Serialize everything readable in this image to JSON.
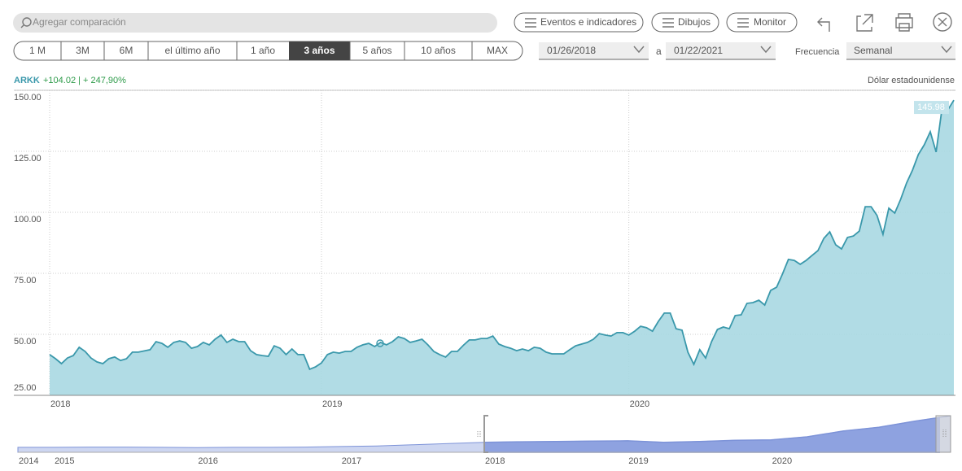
{
  "toolbar": {
    "search_placeholder": "Agregar comparación",
    "buttons": [
      "Eventos e indicadores",
      "Dibujos",
      "Monitor"
    ]
  },
  "ranges": [
    "1 M",
    "3M",
    "6M",
    "el último año",
    "1 año",
    "3 años",
    "5 años",
    "10 años",
    "MAX"
  ],
  "active_range_index": 5,
  "date_from": "01/26/2018",
  "date_sep": "a",
  "date_to": "01/22/2021",
  "frequency_label": "Frecuencia",
  "frequency": "Semanal",
  "ticker": "ARKK",
  "change": "+104.02 | + 247,90%",
  "currency": "Dólar estadounidense",
  "chart_data": [
    {
      "type": "area",
      "color": "#3a98ab",
      "fill": "#a9d8e2",
      "grid": true,
      "categories": [
        "2018",
        null,
        null,
        null,
        null,
        null,
        null,
        null,
        null,
        null,
        null,
        null,
        null,
        null,
        null,
        null,
        null,
        null,
        null,
        null,
        null,
        null,
        null,
        null,
        null,
        null,
        null,
        null,
        null,
        null,
        null,
        null,
        null,
        null,
        null,
        null,
        null,
        null,
        null,
        null,
        null,
        null,
        null,
        null,
        null,
        null,
        "2019",
        null,
        null,
        null,
        null,
        null,
        null,
        null,
        null,
        null,
        null,
        null,
        null,
        null,
        null,
        null,
        null,
        null,
        null,
        null,
        null,
        null,
        null,
        null,
        null,
        null,
        null,
        null,
        null,
        null,
        null,
        null,
        null,
        null,
        null,
        null,
        null,
        null,
        null,
        null,
        null,
        null,
        null,
        null,
        null,
        null,
        null,
        null,
        null,
        null,
        null,
        null,
        "2020",
        null,
        null,
        null,
        null,
        null,
        null,
        null,
        null,
        null,
        null,
        null,
        null,
        null,
        null,
        null,
        null,
        null,
        null,
        null,
        null,
        null,
        null,
        null,
        null,
        null,
        null,
        null,
        null,
        null,
        null,
        null,
        null,
        null,
        null,
        null,
        null,
        null,
        null,
        null,
        null,
        null,
        null,
        null,
        null,
        null,
        null,
        null,
        null,
        null,
        null,
        null,
        null,
        null,
        null,
        null
      ],
      "values": [
        41.7,
        40,
        38,
        40.3,
        41.3,
        44.7,
        43,
        40.3,
        38.7,
        38,
        40,
        40.7,
        39.3,
        40,
        42.7,
        42.7,
        43.2,
        43.7,
        47,
        46.3,
        44.7,
        46.7,
        47.3,
        46.7,
        44.3,
        45,
        46.7,
        45.7,
        48,
        49.7,
        46.7,
        48,
        47,
        47,
        43.3,
        41.7,
        41.3,
        41,
        45.3,
        44.3,
        41.7,
        44,
        41.7,
        41.7,
        35.7,
        36.7,
        38.3,
        41.7,
        42.7,
        42.3,
        43,
        43,
        44.7,
        45.7,
        46.3,
        45,
        46.7,
        45.7,
        47,
        49,
        48.3,
        46.7,
        47.3,
        48,
        45.7,
        43,
        41.7,
        40.7,
        43,
        43,
        45.5,
        47.7,
        47.7,
        48.3,
        48.3,
        49.3,
        46,
        45,
        44.3,
        43.3,
        44,
        43.3,
        44.7,
        44.3,
        42.7,
        42,
        42,
        42,
        43.7,
        45.3,
        46,
        46.7,
        48,
        50.3,
        49.7,
        49.3,
        50.7,
        50.7,
        49.7,
        51.3,
        53.3,
        52.7,
        51.3,
        55.3,
        58.7,
        58.7,
        52.3,
        51.7,
        42.7,
        37.7,
        43.7,
        40.3,
        47,
        52,
        53,
        52.3,
        57.7,
        58,
        62.7,
        63,
        64,
        62,
        68,
        69.3,
        74.7,
        80.7,
        80.3,
        78.7,
        80.3,
        82.3,
        84.3,
        89.3,
        92,
        86.7,
        85,
        89.7,
        90.3,
        92.3,
        102.3,
        102.3,
        98.7,
        91,
        101.7,
        99.7,
        105.3,
        112,
        117.3,
        123.7,
        127.7,
        133,
        124.7,
        142.7,
        142,
        145.98
      ],
      "ylim": [
        25,
        150
      ],
      "yticks": [
        {
          "value": 25,
          "label": "25.00"
        },
        {
          "value": 50,
          "label": "50.00"
        },
        {
          "value": 75,
          "label": "75.00"
        },
        {
          "value": 100,
          "label": "100.00"
        },
        {
          "value": 125,
          "label": "125.00"
        },
        {
          "value": 150,
          "label": "150.00"
        }
      ]
    },
    {
      "type": "area",
      "color": "#7d93d8",
      "fill": "#cdd6f1",
      "selected_fill": "#8ea2e0",
      "categories": [
        "2014",
        "2015",
        null,
        null,
        null,
        "2016",
        null,
        null,
        null,
        "2017",
        null,
        null,
        null,
        "2018",
        null,
        null,
        null,
        "2019",
        null,
        null,
        null,
        "2020",
        null,
        null,
        null,
        null,
        null
      ],
      "values": [
        20,
        20,
        21,
        21,
        20,
        19,
        20,
        20,
        21,
        23,
        25,
        30,
        35,
        40,
        42,
        43,
        45,
        46,
        40,
        43,
        48,
        50,
        62,
        85,
        100,
        125,
        146
      ],
      "ylim": [
        0,
        150
      ]
    }
  ]
}
